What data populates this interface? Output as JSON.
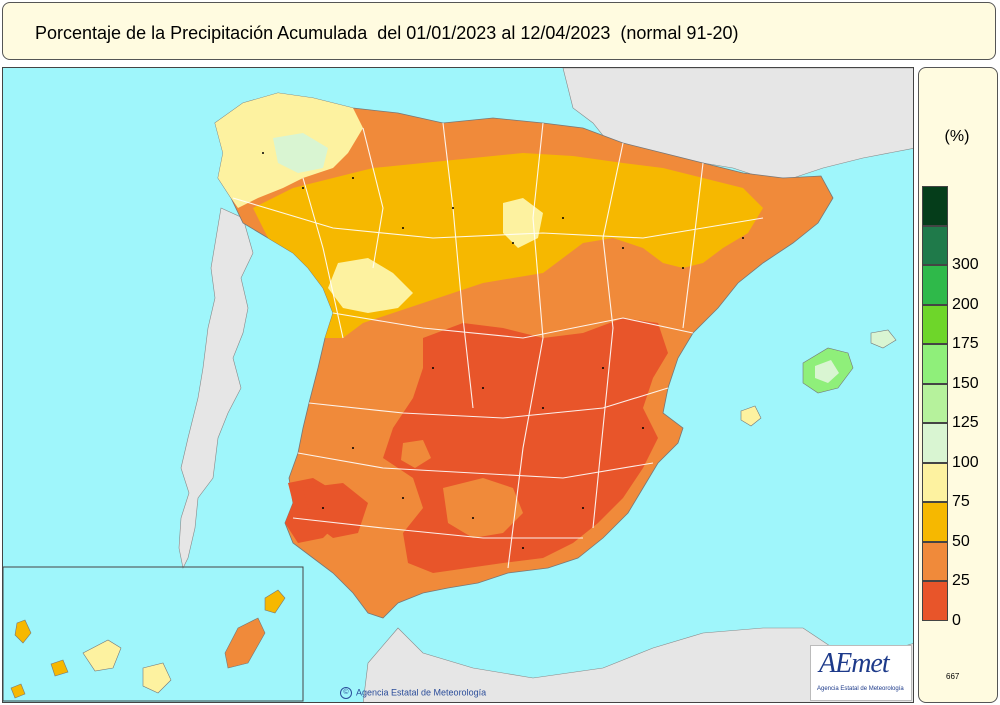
{
  "title": "Porcentaje de la Precipitación Acumulada  del 01/01/2023 al 12/04/2023  (normal 91-20)",
  "legend": {
    "unit": "(%)",
    "classes": [
      {
        "label": "0",
        "color": "#e8552a"
      },
      {
        "label": "25",
        "color": "#f08a3a"
      },
      {
        "label": "50",
        "color": "#f6b800"
      },
      {
        "label": "75",
        "color": "#fdf2a0"
      },
      {
        "label": "100",
        "color": "#d9f5d2"
      },
      {
        "label": "125",
        "color": "#b6f29c"
      },
      {
        "label": "150",
        "color": "#8fef7a"
      },
      {
        "label": "175",
        "color": "#6ed62a"
      },
      {
        "label": "200",
        "color": "#2fb94a"
      },
      {
        "label": "300",
        "color": "#1f7a4a"
      },
      {
        "label": "",
        "color": "#053d1a"
      }
    ]
  },
  "map_code": "667",
  "copyright": "Agencia Estatal de Meteorología",
  "logo": {
    "main": "AEmet",
    "sub": "Agencia Estatal de Meteorología"
  },
  "colors": {
    "sea": "#9ff6fb",
    "land_other": "#e6e6e6",
    "border_lines": "#ffffff"
  }
}
